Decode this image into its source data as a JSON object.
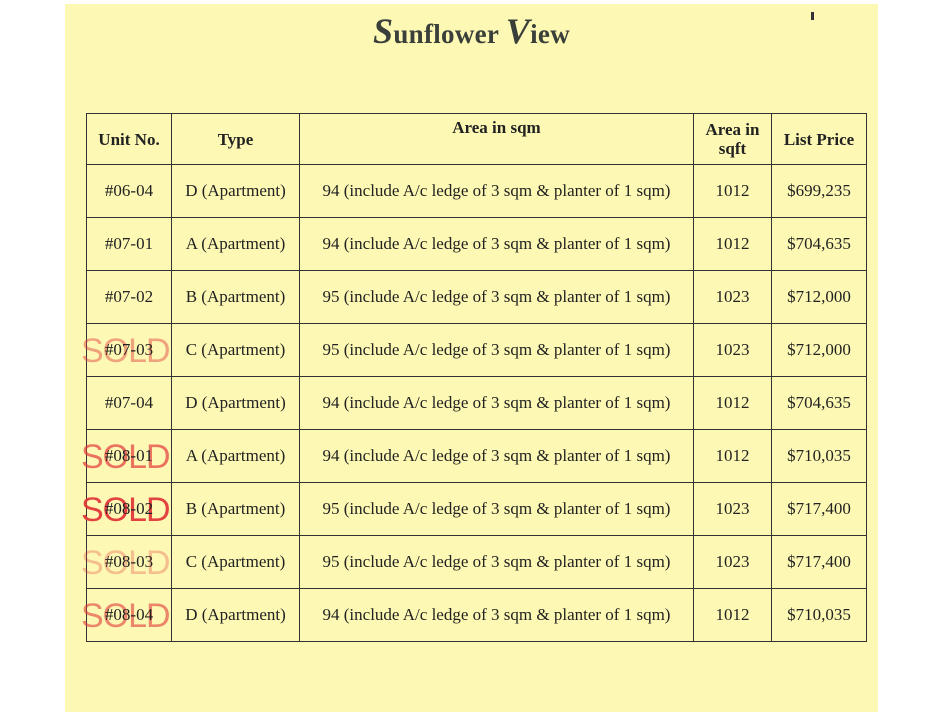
{
  "title": {
    "first_cap": "S",
    "first_rest": "unflower ",
    "second_cap": "V",
    "second_rest": "iew"
  },
  "table": {
    "headers": [
      "Unit No.",
      "Type",
      "Area in sqm",
      "Area in sqft",
      "List Price"
    ],
    "rows": [
      {
        "unit": "#06-04",
        "type": "D (Apartment)",
        "area_sqm": "94 (include A/c ledge of 3 sqm & planter of 1 sqm)",
        "area_sqft": "1012",
        "price": "$699,235",
        "stamp": ""
      },
      {
        "unit": "#07-01",
        "type": "A (Apartment)",
        "area_sqm": "94 (include A/c ledge of 3 sqm & planter of 1 sqm)",
        "area_sqft": "1012",
        "price": "$704,635",
        "stamp": ""
      },
      {
        "unit": "#07-02",
        "type": "B (Apartment)",
        "area_sqm": "95 (include A/c ledge of 3 sqm & planter of 1 sqm)",
        "area_sqft": "1023",
        "price": "$712,000",
        "stamp": ""
      },
      {
        "unit": "#07-03",
        "type": "C (Apartment)",
        "area_sqm": "95 (include A/c ledge of 3 sqm & planter of 1 sqm)",
        "area_sqft": "1023",
        "price": "$712,000",
        "stamp": "SOLD"
      },
      {
        "unit": "#07-04",
        "type": "D (Apartment)",
        "area_sqm": "94 (include A/c ledge of 3 sqm & planter of 1 sqm)",
        "area_sqft": "1012",
        "price": "$704,635",
        "stamp": ""
      },
      {
        "unit": "#08-01",
        "type": "A (Apartment)",
        "area_sqm": "94 (include A/c ledge of 3 sqm & planter of 1 sqm)",
        "area_sqft": "1012",
        "price": "$710,035",
        "stamp": "SOLD"
      },
      {
        "unit": "#08-02",
        "type": "B (Apartment)",
        "area_sqm": "95 (include A/c ledge of 3 sqm & planter of 1 sqm)",
        "area_sqft": "1023",
        "price": "$717,400",
        "stamp": "SOLD"
      },
      {
        "unit": "#08-03",
        "type": "C (Apartment)",
        "area_sqm": "95 (include A/c ledge of 3 sqm & planter of 1 sqm)",
        "area_sqft": "1023",
        "price": "$717,400",
        "stamp": "SOLD"
      },
      {
        "unit": "#08-04",
        "type": "D (Apartment)",
        "area_sqm": "94 (include A/c ledge of 3 sqm & planter of 1 sqm)",
        "area_sqft": "1012",
        "price": "$710,035",
        "stamp": "SOLD"
      }
    ]
  },
  "colors": {
    "paper": "#fdf9b4",
    "stamp": "#e23a3a",
    "title": "#3a3f3a"
  }
}
